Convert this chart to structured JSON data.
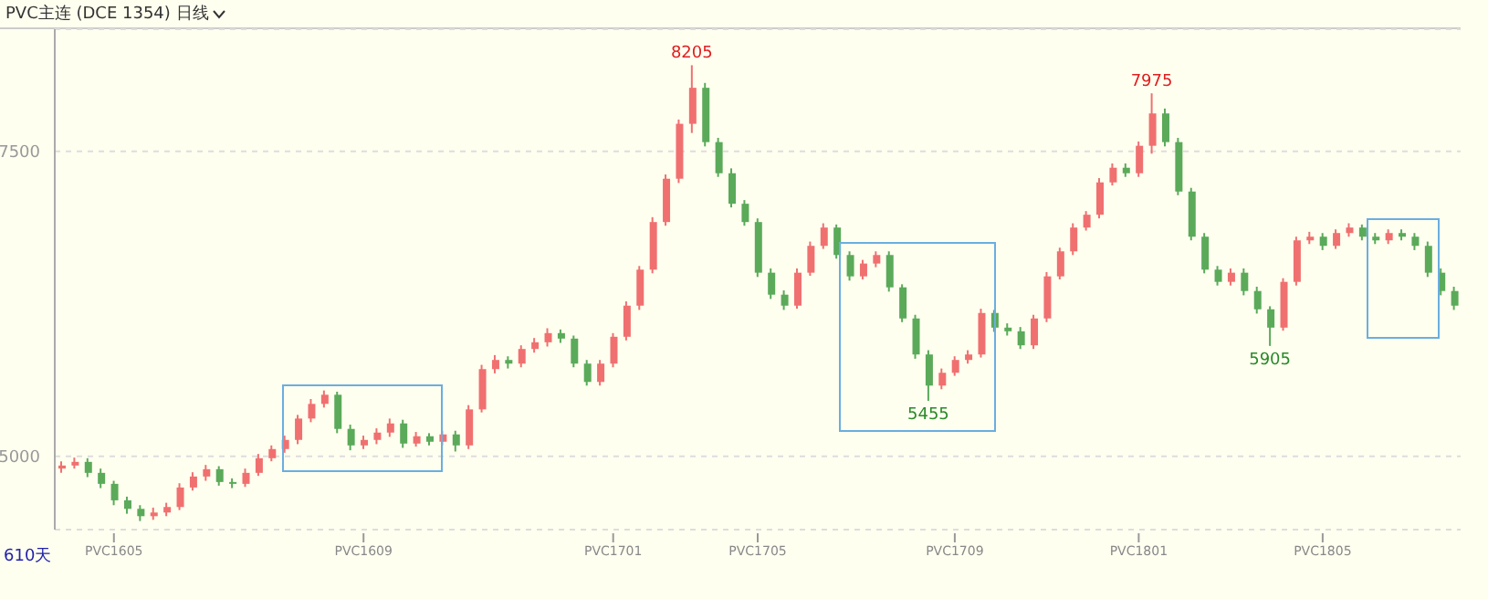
{
  "chart_data": {
    "type": "candlestick",
    "title": "PVC主连 (DCE 1354) 日线",
    "categories": [
      null,
      null,
      null,
      null,
      "PVC1605",
      null,
      null,
      null,
      null,
      null,
      null,
      null,
      null,
      null,
      null,
      null,
      null,
      null,
      null,
      null,
      null,
      null,
      null,
      "PVC1609",
      null,
      null,
      null,
      null,
      null,
      null,
      null,
      null,
      null,
      null,
      null,
      null,
      null,
      null,
      null,
      null,
      null,
      null,
      "PVC1701",
      null,
      null,
      null,
      null,
      null,
      null,
      null,
      null,
      null,
      null,
      "PVC1705",
      null,
      null,
      null,
      null,
      null,
      null,
      null,
      null,
      null,
      null,
      null,
      null,
      null,
      null,
      "PVC1709",
      null,
      null,
      null,
      null,
      null,
      null,
      null,
      null,
      null,
      null,
      null,
      null,
      null,
      "PVC1801",
      null,
      null,
      null,
      null,
      null,
      null,
      null,
      null,
      null,
      null,
      null,
      null,
      null,
      "PVC1805",
      null,
      null,
      null,
      null,
      null,
      null,
      null,
      null,
      null,
      null
    ],
    "ohlc": [
      [
        4900,
        4960,
        4865,
        4925
      ],
      [
        4925,
        4990,
        4900,
        4955
      ],
      [
        4955,
        4985,
        4830,
        4865
      ],
      [
        4865,
        4900,
        4740,
        4775
      ],
      [
        4775,
        4800,
        4600,
        4640
      ],
      [
        4640,
        4670,
        4530,
        4570
      ],
      [
        4570,
        4600,
        4470,
        4510
      ],
      [
        4510,
        4580,
        4480,
        4540
      ],
      [
        4540,
        4620,
        4510,
        4585
      ],
      [
        4585,
        4780,
        4560,
        4745
      ],
      [
        4745,
        4870,
        4720,
        4835
      ],
      [
        4835,
        4930,
        4800,
        4895
      ],
      [
        4895,
        4920,
        4760,
        4790
      ],
      [
        4790,
        4820,
        4740,
        4775
      ],
      [
        4775,
        4900,
        4750,
        4865
      ],
      [
        4865,
        5020,
        4840,
        4985
      ],
      [
        4985,
        5090,
        4960,
        5060
      ],
      [
        5060,
        5170,
        5030,
        5135
      ],
      [
        5135,
        5340,
        5100,
        5310
      ],
      [
        5310,
        5470,
        5280,
        5430
      ],
      [
        5430,
        5540,
        5400,
        5505
      ],
      [
        5505,
        5530,
        5190,
        5225
      ],
      [
        5225,
        5260,
        5050,
        5090
      ],
      [
        5090,
        5170,
        5060,
        5135
      ],
      [
        5135,
        5230,
        5100,
        5195
      ],
      [
        5195,
        5310,
        5160,
        5270
      ],
      [
        5270,
        5300,
        5070,
        5105
      ],
      [
        5105,
        5200,
        5080,
        5165
      ],
      [
        5165,
        5190,
        5090,
        5120
      ],
      [
        5120,
        5210,
        5090,
        5180
      ],
      [
        5180,
        5210,
        5040,
        5090
      ],
      [
        5090,
        5420,
        5060,
        5385
      ],
      [
        5385,
        5750,
        5360,
        5715
      ],
      [
        5715,
        5830,
        5680,
        5790
      ],
      [
        5790,
        5820,
        5720,
        5760
      ],
      [
        5760,
        5910,
        5730,
        5880
      ],
      [
        5880,
        5970,
        5850,
        5935
      ],
      [
        5935,
        6050,
        5900,
        6010
      ],
      [
        6010,
        6040,
        5930,
        5965
      ],
      [
        5965,
        5990,
        5730,
        5760
      ],
      [
        5760,
        5790,
        5580,
        5610
      ],
      [
        5610,
        5790,
        5580,
        5760
      ],
      [
        5760,
        6010,
        5730,
        5980
      ],
      [
        5980,
        6270,
        5950,
        6235
      ],
      [
        6235,
        6560,
        6200,
        6530
      ],
      [
        6530,
        6960,
        6500,
        6920
      ],
      [
        6920,
        7310,
        6890,
        7275
      ],
      [
        7275,
        7760,
        7240,
        7725
      ],
      [
        7725,
        8205,
        7650,
        8020
      ],
      [
        8020,
        8060,
        7540,
        7575
      ],
      [
        7575,
        7610,
        7290,
        7320
      ],
      [
        7320,
        7360,
        7040,
        7070
      ],
      [
        7070,
        7100,
        6890,
        6920
      ],
      [
        6920,
        6950,
        6470,
        6505
      ],
      [
        6505,
        6540,
        6290,
        6325
      ],
      [
        6325,
        6360,
        6200,
        6235
      ],
      [
        6235,
        6540,
        6210,
        6505
      ],
      [
        6505,
        6760,
        6480,
        6725
      ],
      [
        6725,
        6910,
        6700,
        6875
      ],
      [
        6875,
        6900,
        6620,
        6650
      ],
      [
        6650,
        6680,
        6440,
        6475
      ],
      [
        6475,
        6610,
        6450,
        6580
      ],
      [
        6580,
        6680,
        6550,
        6650
      ],
      [
        6650,
        6680,
        6350,
        6385
      ],
      [
        6385,
        6410,
        6100,
        6130
      ],
      [
        6130,
        6160,
        5800,
        5835
      ],
      [
        5835,
        5870,
        5455,
        5580
      ],
      [
        5580,
        5720,
        5550,
        5685
      ],
      [
        5685,
        5820,
        5660,
        5790
      ],
      [
        5790,
        5870,
        5760,
        5835
      ],
      [
        5835,
        6210,
        5810,
        6175
      ],
      [
        6175,
        6200,
        6020,
        6055
      ],
      [
        6055,
        6090,
        5990,
        6025
      ],
      [
        6025,
        6060,
        5880,
        5910
      ],
      [
        5910,
        6160,
        5880,
        6130
      ],
      [
        6130,
        6510,
        6100,
        6475
      ],
      [
        6475,
        6710,
        6450,
        6680
      ],
      [
        6680,
        6910,
        6650,
        6875
      ],
      [
        6875,
        7010,
        6850,
        6980
      ],
      [
        6980,
        7280,
        6950,
        7245
      ],
      [
        7245,
        7400,
        7220,
        7365
      ],
      [
        7365,
        7400,
        7290,
        7320
      ],
      [
        7320,
        7580,
        7290,
        7545
      ],
      [
        7545,
        7975,
        7480,
        7810
      ],
      [
        7810,
        7850,
        7540,
        7575
      ],
      [
        7575,
        7610,
        7140,
        7170
      ],
      [
        7170,
        7200,
        6770,
        6800
      ],
      [
        6800,
        6830,
        6500,
        6530
      ],
      [
        6530,
        6560,
        6400,
        6430
      ],
      [
        6430,
        6540,
        6400,
        6505
      ],
      [
        6505,
        6540,
        6320,
        6355
      ],
      [
        6355,
        6390,
        6170,
        6205
      ],
      [
        6205,
        6230,
        5905,
        6055
      ],
      [
        6055,
        6460,
        6030,
        6430
      ],
      [
        6430,
        6800,
        6400,
        6770
      ],
      [
        6770,
        6840,
        6740,
        6800
      ],
      [
        6800,
        6830,
        6690,
        6725
      ],
      [
        6725,
        6860,
        6700,
        6830
      ],
      [
        6830,
        6910,
        6800,
        6875
      ],
      [
        6875,
        6900,
        6770,
        6800
      ],
      [
        6800,
        6830,
        6740,
        6770
      ],
      [
        6770,
        6860,
        6740,
        6830
      ],
      [
        6830,
        6860,
        6770,
        6800
      ],
      [
        6800,
        6830,
        6690,
        6725
      ],
      [
        6725,
        6760,
        6470,
        6505
      ],
      [
        6505,
        6540,
        6320,
        6355
      ],
      [
        6355,
        6390,
        6200,
        6235
      ]
    ],
    "ylim": [
      4400,
      8500
    ],
    "yticks": [
      5000,
      7500
    ],
    "grid": "y",
    "annotations": [
      {
        "text": "8205",
        "y": 8205
      },
      {
        "text": "7975",
        "y": 7975
      },
      {
        "text": "5455",
        "y": 5455
      },
      {
        "text": "5905",
        "y": 5905
      },
      "610天"
    ]
  }
}
